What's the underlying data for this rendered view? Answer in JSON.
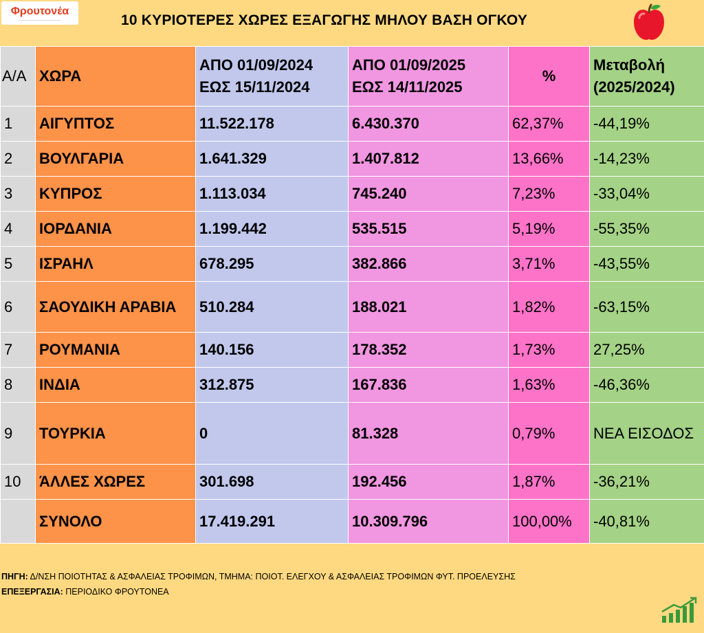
{
  "header": {
    "logo_text": "Φρουτονέα",
    "title": "10 ΚΥΡΙΟΤΕΡΕΣ ΧΩΡΕΣ ΕΞΑΓΩΓΗΣ ΜΗΛΟΥ ΒΑΣΗ ΟΓΚΟΥ"
  },
  "columns": {
    "aa": "Α/Α",
    "country": "ΧΩΡΑ",
    "period1_line1": "ΑΠΟ 01/09/2024",
    "period1_line2": "ΕΩΣ  15/11/2024",
    "period2_line1": "ΑΠΟ 01/09/2025",
    "period2_line2": "ΕΩΣ  14/11/2025",
    "pct": "%",
    "change_line1": "Μεταβολή",
    "change_line2": "(2025/2024)"
  },
  "rows": [
    {
      "aa": "1",
      "country": "ΑΙΓΥΠΤΟΣ",
      "v2024": "11.522.178",
      "v2025": "6.430.370",
      "pct": "62,37%",
      "change": "-44,19%"
    },
    {
      "aa": "2",
      "country": "ΒΟΥΛΓΑΡΙΑ",
      "v2024": "1.641.329",
      "v2025": "1.407.812",
      "pct": "13,66%",
      "change": "-14,23%"
    },
    {
      "aa": "3",
      "country": "ΚΥΠΡΟΣ",
      "v2024": "1.113.034",
      "v2025": "745.240",
      "pct": "7,23%",
      "change": "-33,04%"
    },
    {
      "aa": "4",
      "country": "ΙΟΡΔΑΝΙΑ",
      "v2024": "1.199.442",
      "v2025": "535.515",
      "pct": "5,19%",
      "change": "-55,35%"
    },
    {
      "aa": "5",
      "country": "ΙΣΡΑΗΛ",
      "v2024": "678.295",
      "v2025": "382.866",
      "pct": "3,71%",
      "change": "-43,55%"
    },
    {
      "aa": "6",
      "country": "ΣΑΟΥΔΙΚΗ ΑΡΑΒΙΑ",
      "v2024": "510.284",
      "v2025": "188.021",
      "pct": "1,82%",
      "change": "-63,15%"
    },
    {
      "aa": "7",
      "country": "ΡΟΥΜΑΝΙΑ",
      "v2024": "140.156",
      "v2025": "178.352",
      "pct": "1,73%",
      "change": "27,25%"
    },
    {
      "aa": "8",
      "country": "ΙΝΔΙΑ",
      "v2024": "312.875",
      "v2025": "167.836",
      "pct": "1,63%",
      "change": "-46,36%"
    },
    {
      "aa": "9",
      "country": "ΤΟΥΡΚΙΑ",
      "v2024": "0",
      "v2025": "81.328",
      "pct": "0,79%",
      "change": "ΝΕΑ ΕΙΣΟΔΟΣ"
    },
    {
      "aa": "10",
      "country": "ΆΛΛΕΣ ΧΩΡΕΣ",
      "v2024": "301.698",
      "v2025": "192.456",
      "pct": "1,87%",
      "change": "-36,21%"
    },
    {
      "aa": "",
      "country": "ΣΥΝΟΛΟ",
      "v2024": "17.419.291",
      "v2025": "10.309.796",
      "pct": "100,00%",
      "change": "-40,81%"
    }
  ],
  "footer": {
    "source_label": "ΠΗΓΗ:",
    "source_text": " Δ/ΝΣΗ ΠΟΙΟΤΗΤΑΣ & ΑΣΦΑΛΕΙΑΣ ΤΡΟΦΙΜΩΝ, ΤΜΗΜΑ: ΠΟΙΟΤ. ΕΛΕΓΧΟΥ & ΑΣΦΑΛΕΙΑΣ ΤΡΟΦΙΜΩΝ ΦΥΤ. ΠΡΟΕΛΕΥΣΗΣ",
    "processing_label": "ΕΠΕΞΕΡΓΑΣΙΑ:",
    "processing_text": " ΠΕΡΙΟΔΙΚΟ ΦΡΟΥΤΟΝΕΑ"
  },
  "colors": {
    "background": "#fed981",
    "aa_col": "#d9d9d9",
    "country_col": "#fd9249",
    "period1_col": "#c1c8ec",
    "period2_col": "#f196e1",
    "pct_col": "#fd73c8",
    "change_col": "#a4d286"
  },
  "icons": [
    "apple-icon",
    "growth-chart-icon"
  ]
}
